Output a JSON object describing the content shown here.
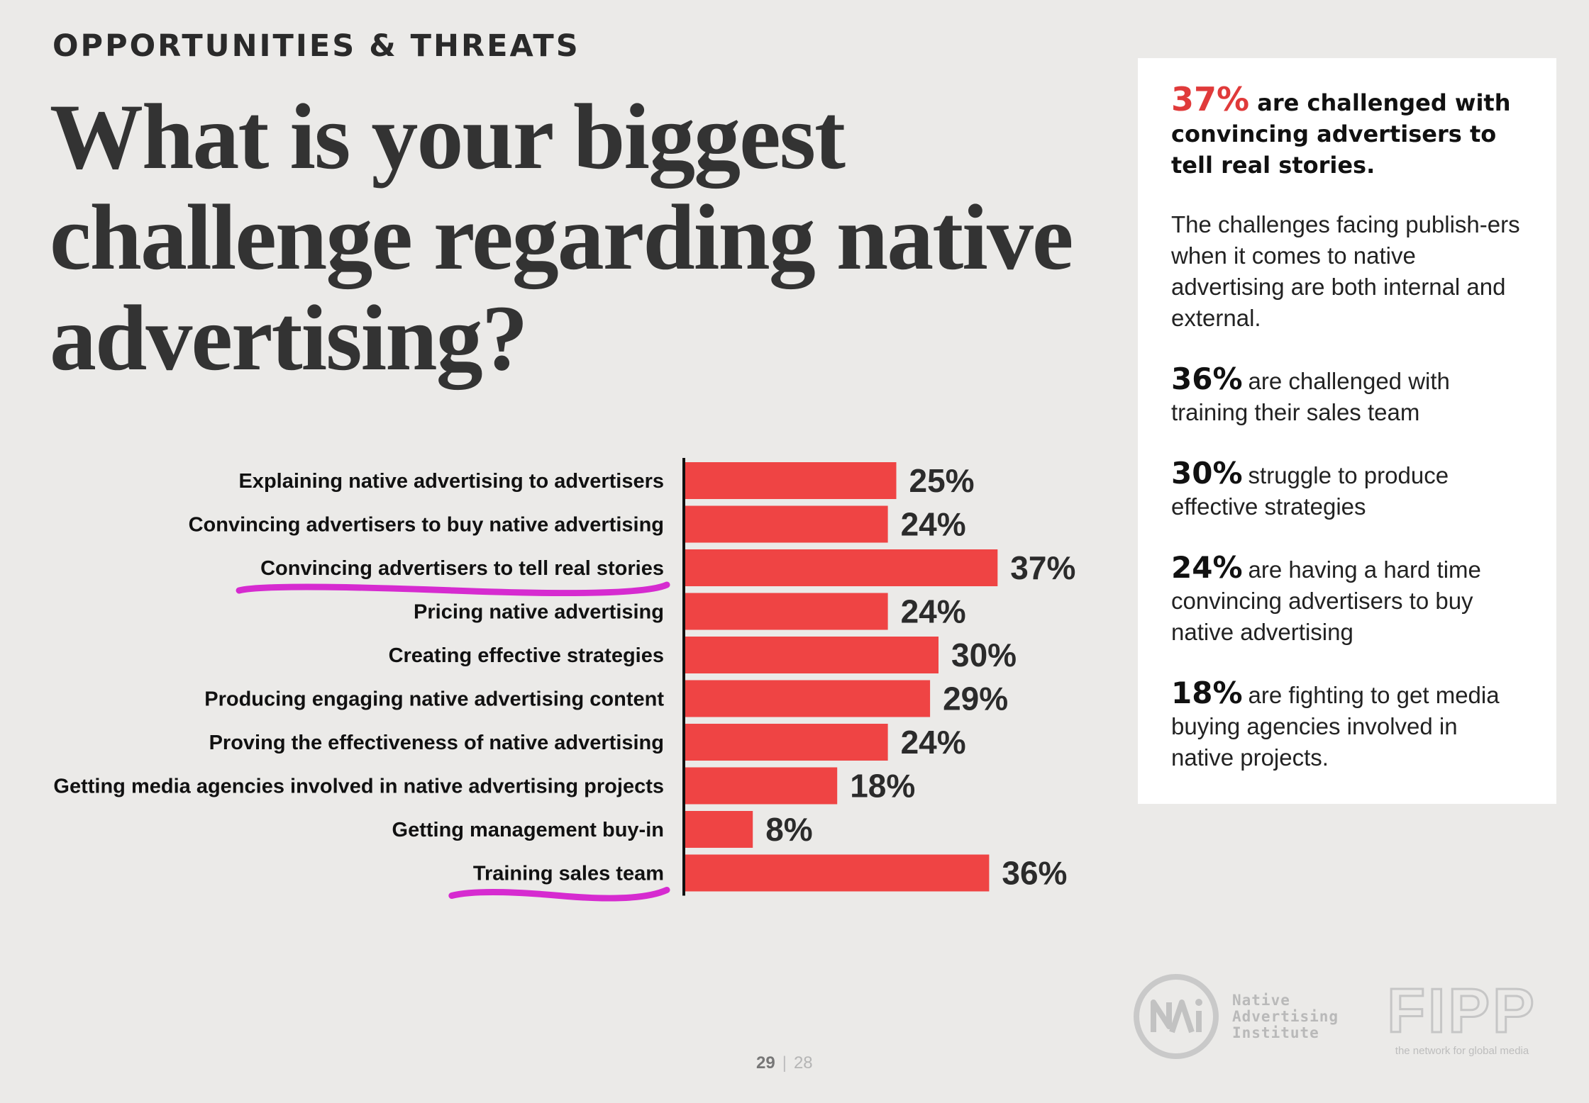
{
  "header": {
    "eyebrow": "OPPORTUNITIES & THREATS",
    "headline": "What is your biggest challenge regarding native advertising?"
  },
  "chart_data": {
    "type": "bar",
    "orientation": "horizontal",
    "categories": [
      "Explaining native advertising to advertisers",
      "Convincing advertisers to buy native advertising",
      "Convincing advertisers to tell real stories",
      "Pricing native advertising",
      "Creating effective strategies",
      "Producing engaging native advertising content",
      "Proving the effectiveness of native advertising",
      "Getting media agencies involved in native advertising projects",
      "Getting management buy-in",
      "Training sales team"
    ],
    "values": [
      25,
      24,
      37,
      24,
      30,
      29,
      24,
      18,
      8,
      36
    ],
    "value_labels": [
      "25%",
      "24%",
      "37%",
      "24%",
      "30%",
      "29%",
      "24%",
      "18%",
      "8%",
      "36%"
    ],
    "highlighted": [
      "Convincing advertisers to tell real stories",
      "Training sales team"
    ],
    "bar_color": "#ef4444",
    "highlight_color": "#d62bd0",
    "xlim": [
      0,
      100
    ]
  },
  "sidebar": {
    "lead_stat": "37%",
    "lead_text": "are challenged with convincing advertisers to tell real stories.",
    "paragraph": "The challenges facing publish-ers when it comes to native advertising are both internal and external.",
    "stats": [
      {
        "num": "36%",
        "text": "are challenged with training their sales team"
      },
      {
        "num": "30%",
        "text": "struggle to produce effective strategies"
      },
      {
        "num": "24%",
        "text": "are having a hard time convincing advertisers to buy native advertising"
      },
      {
        "num": "18%",
        "text": "are fighting to get media buying agencies involved in native projects."
      }
    ],
    "accent_color": "#e03a3a"
  },
  "footer": {
    "page_current": "29",
    "page_other": "28",
    "nai_lines": [
      "Native",
      "Advertising",
      "Institute"
    ],
    "fipp_logo_text": "FIPP",
    "fipp_tagline": "the network for global media"
  }
}
